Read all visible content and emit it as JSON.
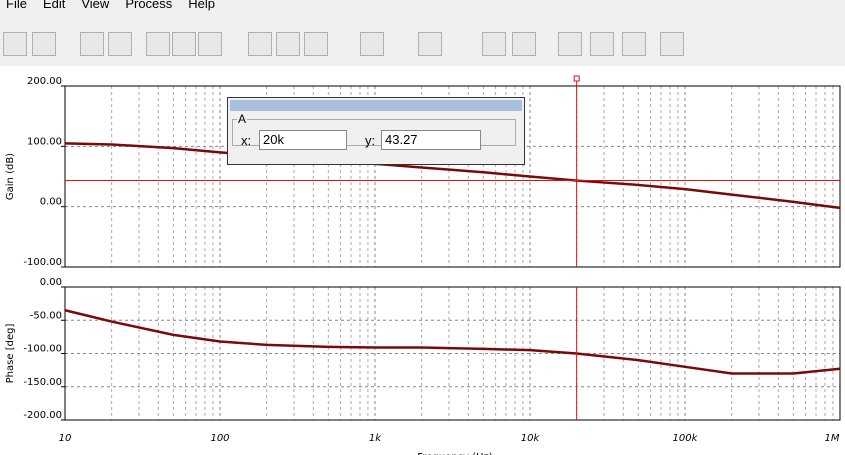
{
  "menu": [
    "File",
    "Edit",
    "View",
    "Process",
    "Help"
  ],
  "cursor_box": {
    "group": "A",
    "x_label": "x:",
    "x_value": "20k",
    "y_label": "y:",
    "y_value": "43.27"
  },
  "chart_data": [
    {
      "type": "line",
      "ylabel": "Gain (dB)",
      "log_x": true,
      "grid": true,
      "xlim": [
        10,
        1000000
      ],
      "xticks": [
        10,
        100,
        1000,
        10000,
        100000,
        1000000
      ],
      "ylim": [
        -100,
        200
      ],
      "yticks": [
        {
          "value": -100,
          "label": "-100.00"
        },
        {
          "value": 0,
          "label": "0.00"
        },
        {
          "value": 100,
          "label": "100.00"
        },
        {
          "value": 200,
          "label": "200.00"
        }
      ],
      "x": [
        10,
        20,
        50,
        100,
        200,
        500,
        1000,
        2000,
        5000,
        10000,
        20000,
        50000,
        100000,
        200000,
        500000,
        1000000
      ],
      "series": [
        {
          "color": "#7a0a0a",
          "values": [
            105,
            103,
            97,
            90,
            84,
            77,
            71,
            65,
            57,
            50,
            43.27,
            36,
            29,
            20,
            8,
            -2
          ]
        }
      ],
      "cursor_x": 20000,
      "cursor_y": 43.27,
      "cursor_color": "#e01010"
    },
    {
      "type": "line",
      "ylabel": "Phase [deg]",
      "xlabel": "Frequency (Hz)",
      "log_x": true,
      "grid": true,
      "xlim": [
        10,
        1000000
      ],
      "xticks": [
        10,
        100,
        {
          "value": 1000,
          "label": "1k"
        },
        {
          "value": 10000,
          "label": "10k"
        },
        {
          "value": 100000,
          "label": "100k"
        },
        {
          "value": 1000000,
          "label": "1M"
        }
      ],
      "ylim": [
        -200,
        0
      ],
      "yticks": [
        {
          "value": -200,
          "label": "-200.00"
        },
        {
          "value": -150,
          "label": "-150.00"
        },
        {
          "value": -100,
          "label": "-100.00"
        },
        {
          "value": -50,
          "label": "-50.00"
        },
        {
          "value": 0,
          "label": "0.00"
        }
      ],
      "x": [
        10,
        20,
        50,
        100,
        200,
        500,
        1000,
        2000,
        5000,
        10000,
        20000,
        50000,
        100000,
        200000,
        500000,
        1000000
      ],
      "series": [
        {
          "color": "#7a0a0a",
          "values": [
            -35,
            -52,
            -72,
            -82,
            -87,
            -90,
            -91,
            -91,
            -93,
            -95,
            -100,
            -110,
            -120,
            -130,
            -130,
            -123
          ]
        }
      ],
      "cursor_x": 20000,
      "cursor_color": "#e01010"
    }
  ]
}
